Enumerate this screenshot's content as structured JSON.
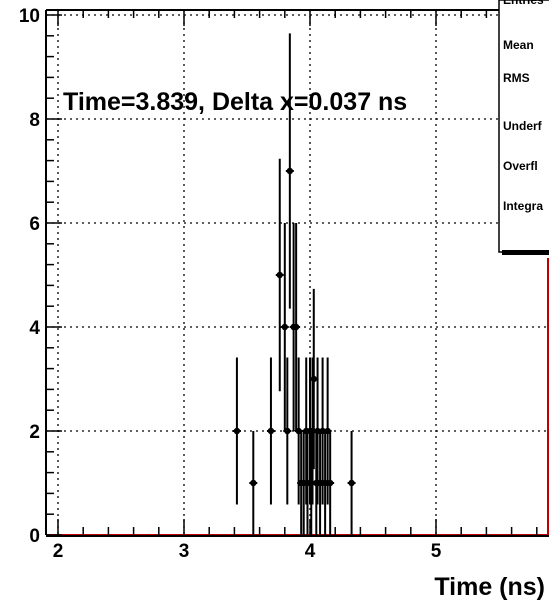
{
  "chart_data": {
    "type": "scatter",
    "title": "",
    "xlabel": "Time (ns)",
    "ylabel": "",
    "xlim": [
      1.92,
      5.85
    ],
    "ylim": [
      0,
      10.2
    ],
    "x_ticks": [
      "2",
      "3",
      "4",
      "5"
    ],
    "y_ticks": [
      "0",
      "2",
      "4",
      "6",
      "8",
      "10"
    ],
    "grid": true,
    "annotation": "Time=3.839, Delta x=0.037 ns",
    "stats_box": {
      "placement": "top-right",
      "labels": [
        "Entries",
        "Mean",
        "RMS",
        "Underf",
        "Overfl",
        "Integra"
      ]
    },
    "series": [
      {
        "points": [
          {
            "x": 3.42,
            "y": 2
          },
          {
            "x": 3.55,
            "y": 1
          },
          {
            "x": 3.69,
            "y": 2
          },
          {
            "x": 3.76,
            "y": 5
          },
          {
            "x": 3.8,
            "y": 4
          },
          {
            "x": 3.82,
            "y": 2
          },
          {
            "x": 3.84,
            "y": 7
          },
          {
            "x": 3.87,
            "y": 4
          },
          {
            "x": 3.89,
            "y": 4
          },
          {
            "x": 3.91,
            "y": 2
          },
          {
            "x": 3.93,
            "y": 1
          },
          {
            "x": 3.95,
            "y": 1
          },
          {
            "x": 3.97,
            "y": 2
          },
          {
            "x": 3.98,
            "y": 1
          },
          {
            "x": 4.0,
            "y": 2
          },
          {
            "x": 4.01,
            "y": 1
          },
          {
            "x": 4.02,
            "y": 2
          },
          {
            "x": 4.03,
            "y": 3
          },
          {
            "x": 4.05,
            "y": 1
          },
          {
            "x": 4.06,
            "y": 2
          },
          {
            "x": 4.08,
            "y": 1
          },
          {
            "x": 4.1,
            "y": 2
          },
          {
            "x": 4.12,
            "y": 1
          },
          {
            "x": 4.14,
            "y": 2
          },
          {
            "x": 4.16,
            "y": 1
          },
          {
            "x": 4.33,
            "y": 1
          }
        ]
      }
    ]
  }
}
